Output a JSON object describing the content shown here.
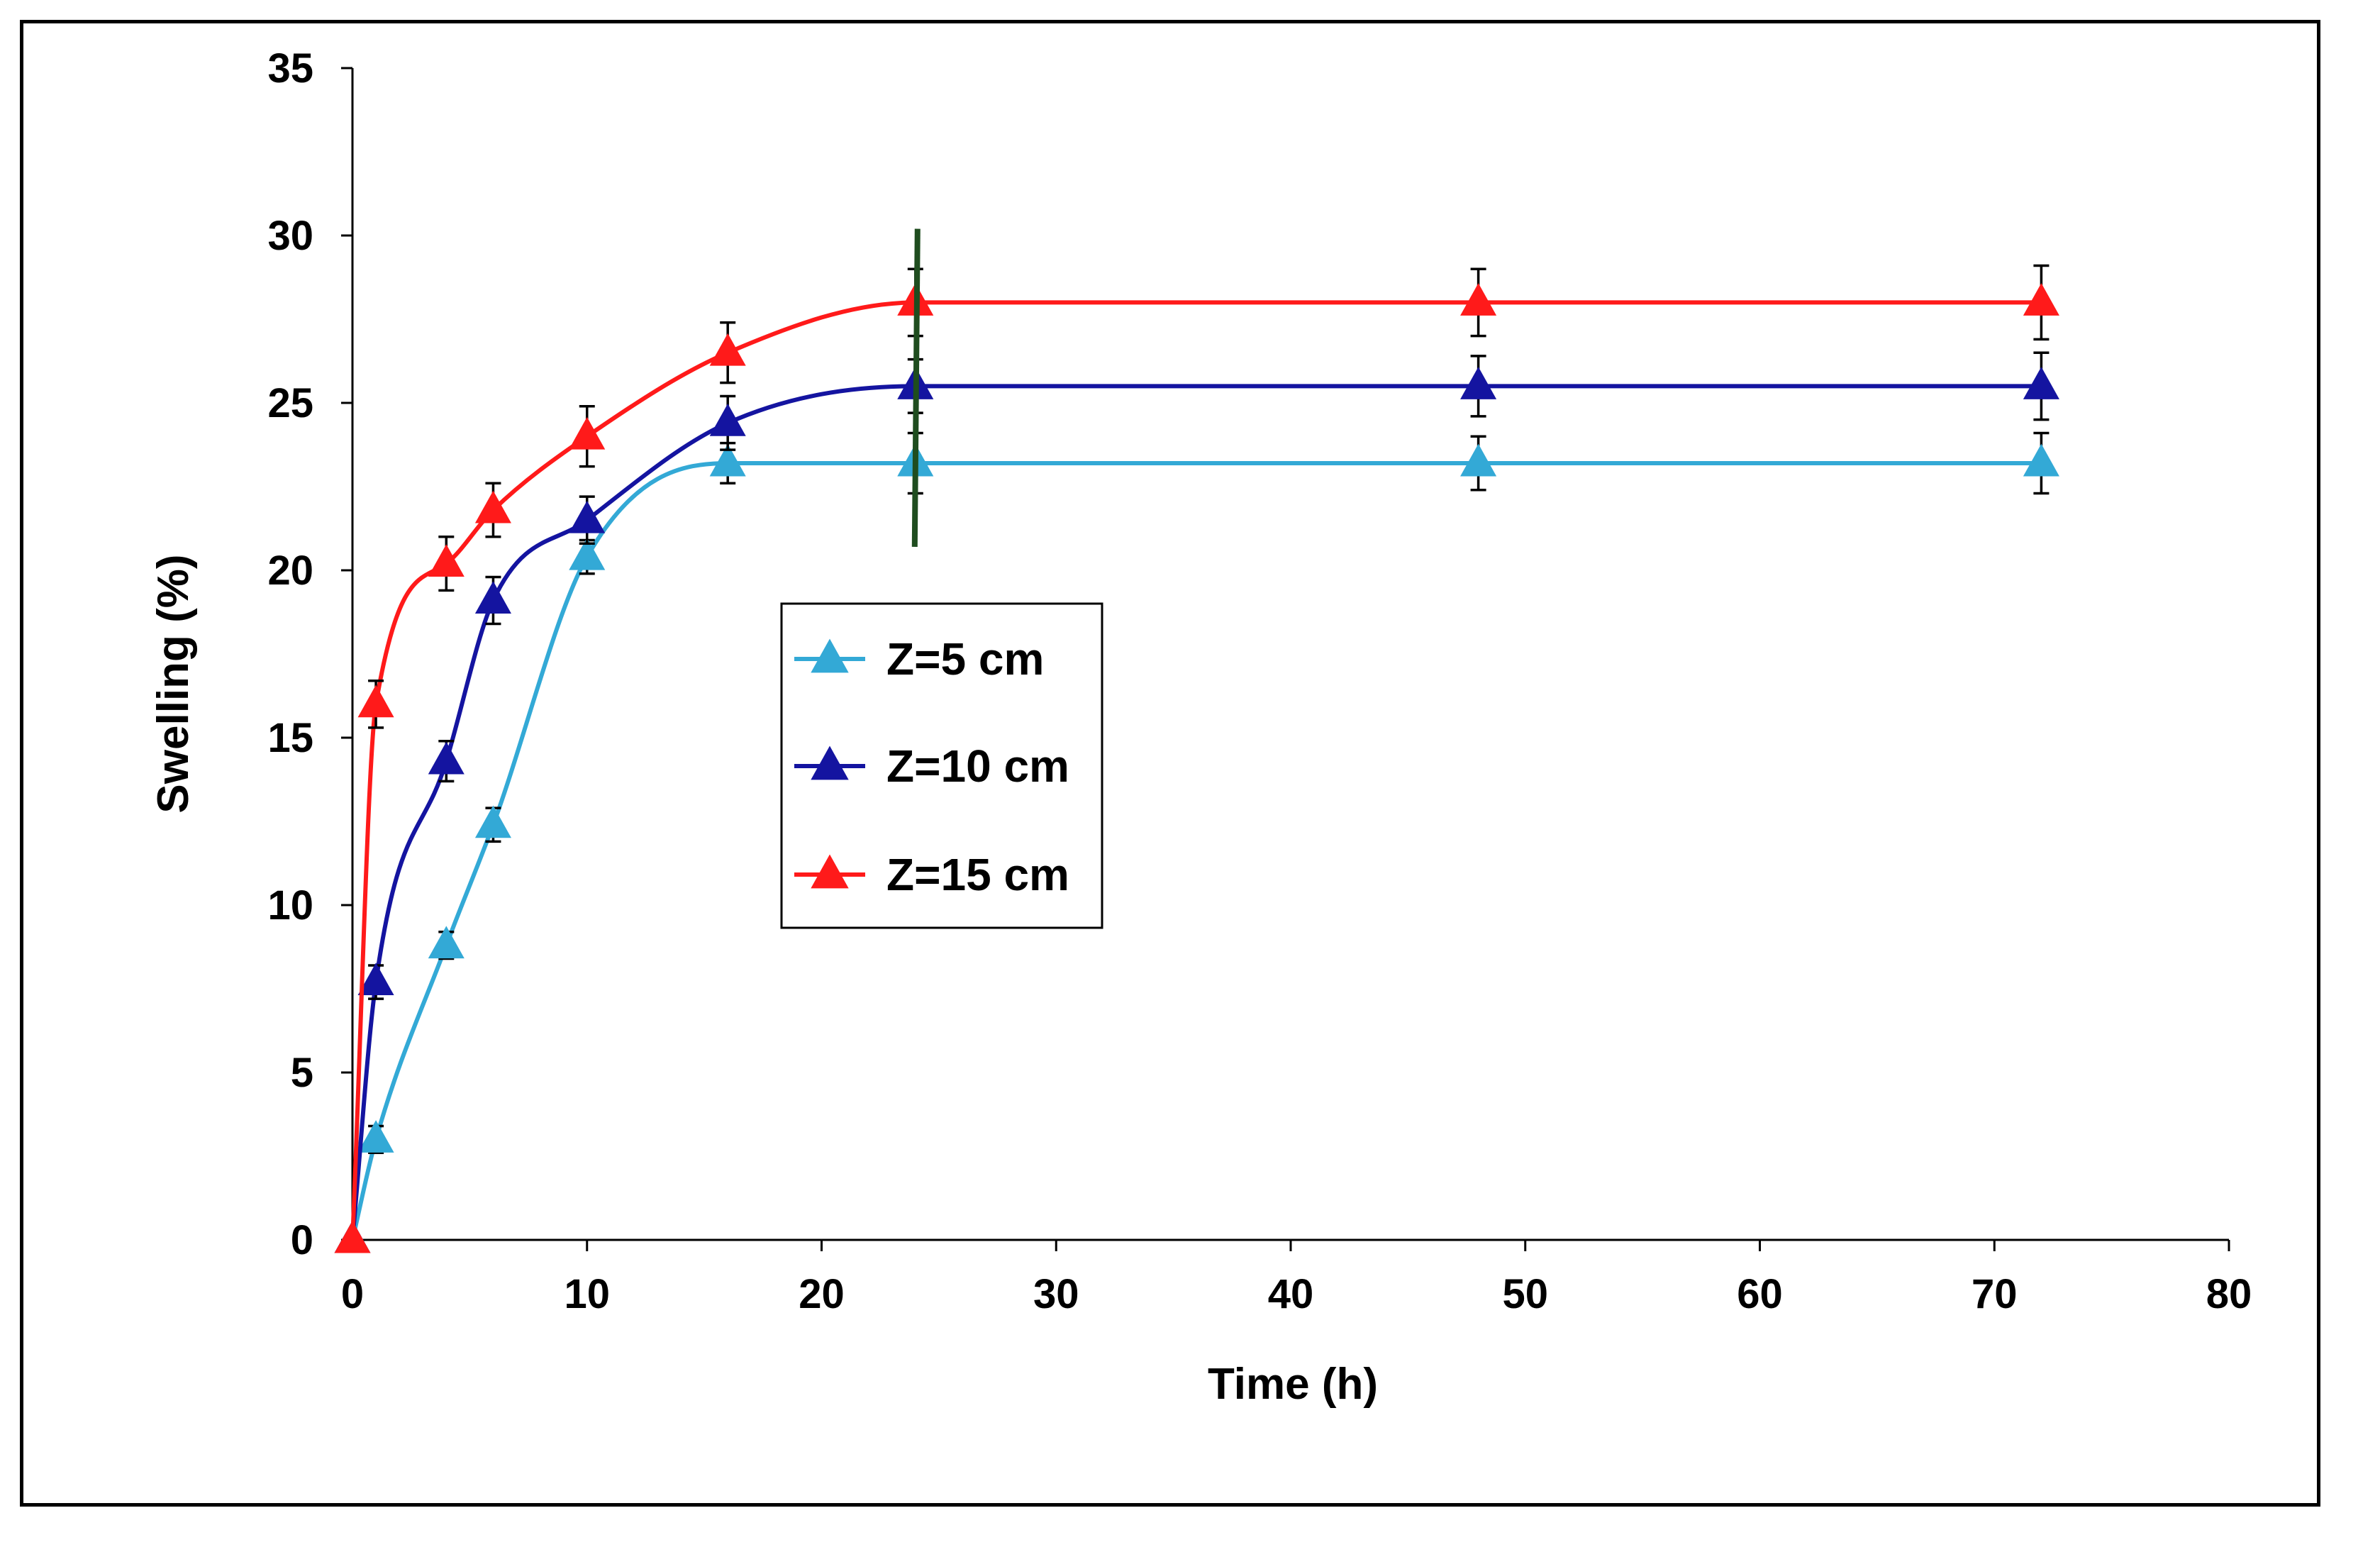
{
  "chart_data": {
    "type": "line",
    "title": "",
    "xlabel": "Time (h)",
    "ylabel": "Swelling  (%)",
    "xlim": [
      0,
      80
    ],
    "ylim": [
      0,
      35
    ],
    "xticks": [
      0,
      10,
      20,
      30,
      40,
      50,
      60,
      70,
      80
    ],
    "yticks": [
      0,
      5,
      10,
      15,
      20,
      25,
      30,
      35
    ],
    "grid": false,
    "legend_position": "center",
    "marker_line": {
      "x": 24,
      "y_range": [
        20.7,
        30.2
      ],
      "color": "#1f4d1f"
    },
    "x": [
      0,
      1,
      4,
      6,
      10,
      16,
      24,
      48,
      72
    ],
    "series": [
      {
        "name": "Z=5 cm",
        "color": "#33a9d6",
        "values": [
          0,
          3.0,
          8.8,
          12.4,
          20.4,
          23.2,
          23.2,
          23.2,
          23.2
        ],
        "errors": [
          0,
          0.4,
          0.4,
          0.5,
          0.5,
          0.6,
          0.9,
          0.8,
          0.9
        ]
      },
      {
        "name": "Z=10 cm",
        "color": "#1414a0",
        "values": [
          0,
          7.7,
          14.3,
          19.1,
          21.5,
          24.4,
          25.5,
          25.5,
          25.5
        ],
        "errors": [
          0,
          0.5,
          0.6,
          0.7,
          0.7,
          0.8,
          0.8,
          0.9,
          1.0
        ]
      },
      {
        "name": "Z=15 cm",
        "color": "#ff1a1a",
        "values": [
          0,
          16.0,
          20.2,
          21.8,
          24.0,
          26.5,
          28.0,
          28.0,
          28.0
        ],
        "errors": [
          0,
          0.7,
          0.8,
          0.8,
          0.9,
          0.9,
          1.0,
          1.0,
          1.1
        ]
      }
    ]
  }
}
